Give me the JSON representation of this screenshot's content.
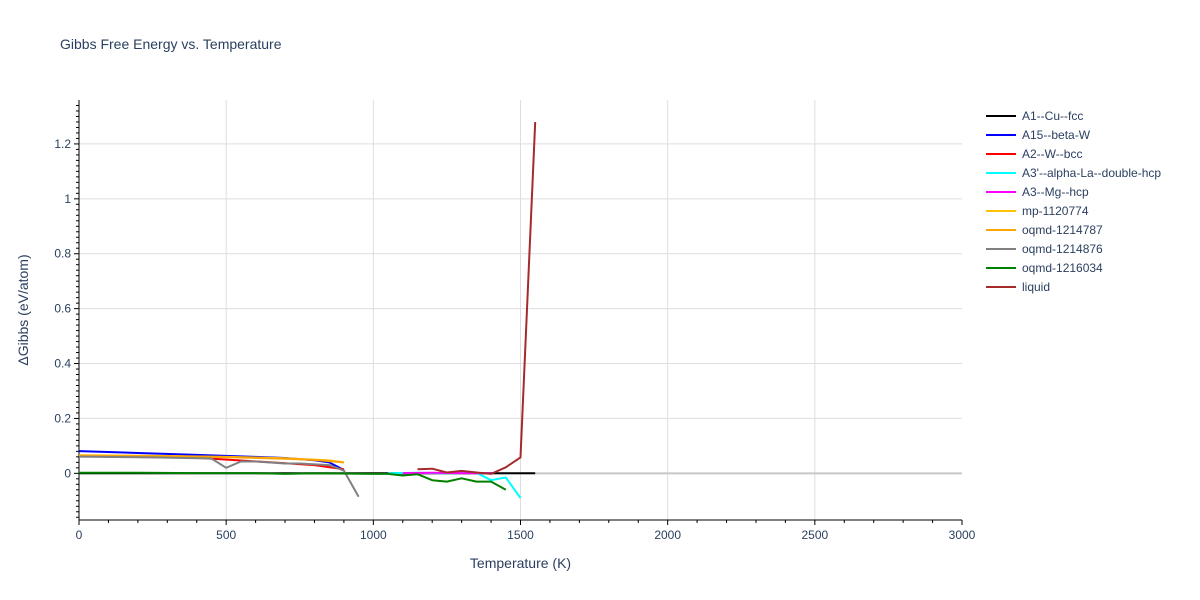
{
  "chart_data": {
    "type": "line",
    "title": "Gibbs Free Energy vs. Temperature",
    "xlabel": "Temperature (K)",
    "ylabel": "ΔGibbs (eV/atom)",
    "xlim": [
      0,
      3000
    ],
    "ylim": [
      -0.17,
      1.36
    ],
    "xticks": [
      0,
      500,
      1000,
      1500,
      2000,
      2500,
      3000
    ],
    "xtick_labels": [
      "0",
      "500",
      "1000",
      "1500",
      "2000",
      "2500",
      "3000"
    ],
    "yticks": [
      0,
      0.2,
      0.4,
      0.6,
      0.8,
      1,
      1.2
    ],
    "ytick_labels": [
      "0",
      "0.2",
      "0.4",
      "0.6",
      "0.8",
      "1",
      "1.2"
    ],
    "grid": true,
    "legend_position": "right",
    "series": [
      {
        "name": "A1--Cu--fcc",
        "color": "#000000",
        "x": [
          0,
          300,
          600,
          900,
          1200,
          1400,
          1550
        ],
        "y": [
          0,
          0,
          0,
          0,
          0,
          0,
          0
        ]
      },
      {
        "name": "A15--beta-W",
        "color": "#0000ff",
        "x": [
          0,
          200,
          400,
          600,
          700,
          800,
          850,
          900
        ],
        "y": [
          0.081,
          0.074,
          0.067,
          0.06,
          0.056,
          0.048,
          0.04,
          0.012
        ]
      },
      {
        "name": "A2--W--bcc",
        "color": "#ff0000",
        "x": [
          0,
          400,
          800,
          900
        ],
        "y": [
          0.062,
          0.057,
          0.03,
          0.015
        ]
      },
      {
        "name": "A3'--alpha-La--double-hcp",
        "color": "#00ffff",
        "x": [
          1050,
          1150,
          1250,
          1350,
          1400,
          1450,
          1500
        ],
        "y": [
          0,
          0.002,
          0,
          0.002,
          -0.025,
          -0.015,
          -0.09
        ]
      },
      {
        "name": "A3--Mg--hcp",
        "color": "#ff00ff",
        "x": [
          1100,
          1200,
          1300,
          1400
        ],
        "y": [
          0.001,
          0.002,
          0.001,
          0
        ]
      },
      {
        "name": "mp-1120774",
        "color": "#ffc000",
        "x": [
          0,
          300,
          500,
          700,
          850,
          900
        ],
        "y": [
          0.066,
          0.063,
          0.06,
          0.055,
          0.047,
          0.04
        ]
      },
      {
        "name": "oqmd-1214787",
        "color": "#ffa500",
        "x": [
          0,
          300,
          500,
          700,
          800,
          900
        ],
        "y": [
          0.065,
          0.062,
          0.059,
          0.053,
          0.049,
          0.04
        ]
      },
      {
        "name": "oqmd-1214876",
        "color": "#808080",
        "x": [
          0,
          250,
          450,
          500,
          550,
          600,
          700,
          750,
          850,
          900,
          950
        ],
        "y": [
          0.061,
          0.058,
          0.054,
          0.02,
          0.043,
          0.043,
          0.036,
          0.036,
          0.03,
          0.01,
          -0.085
        ]
      },
      {
        "name": "oqmd-1216034",
        "color": "#008000",
        "x": [
          0,
          200,
          400,
          600,
          700,
          800,
          1000,
          1050,
          1100,
          1150,
          1200,
          1250,
          1300,
          1350,
          1400,
          1450
        ],
        "y": [
          0.002,
          0.002,
          0.001,
          0.001,
          -0.002,
          0,
          -0.002,
          -0.002,
          -0.008,
          -0.003,
          -0.025,
          -0.03,
          -0.018,
          -0.03,
          -0.03,
          -0.06
        ]
      },
      {
        "name": "liquid",
        "color": "#a52a2a",
        "x": [
          1150,
          1200,
          1250,
          1300,
          1350,
          1400,
          1450,
          1500,
          1550
        ],
        "y": [
          0.015,
          0.017,
          0.003,
          0.009,
          0.003,
          -0.002,
          0.022,
          0.058,
          1.28
        ]
      }
    ]
  }
}
